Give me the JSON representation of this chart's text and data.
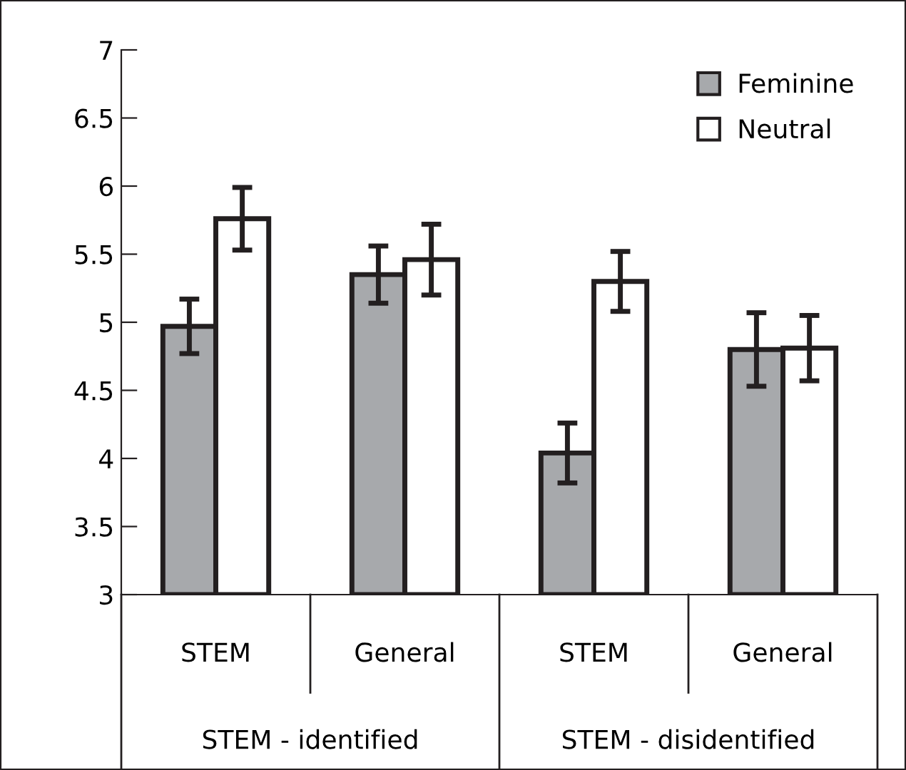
{
  "chart_data": {
    "type": "bar",
    "categories": [
      "STEM",
      "General",
      "STEM",
      "General"
    ],
    "series": [
      {
        "name": "Feminine",
        "color": "#a7a9ac",
        "values": [
          4.97,
          5.35,
          4.04,
          4.8
        ],
        "errors": [
          0.2,
          0.21,
          0.22,
          0.27
        ]
      },
      {
        "name": "Neutral",
        "color": "#ffffff",
        "values": [
          5.76,
          5.46,
          5.3,
          4.81
        ],
        "errors": [
          0.23,
          0.26,
          0.22,
          0.24
        ]
      }
    ],
    "annotations": [
      "STEM - identified",
      "STEM - disidentified"
    ],
    "ylim": [
      3,
      7
    ],
    "yticks": [
      3,
      3.5,
      4,
      4.5,
      5,
      5.5,
      6,
      6.5,
      7
    ],
    "grid": false,
    "legend": "top right"
  }
}
